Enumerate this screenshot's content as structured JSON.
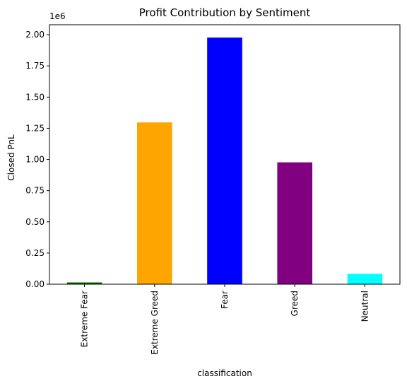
{
  "chart_data": {
    "type": "bar",
    "title": "Profit Contribution by Sentiment",
    "xlabel": "classification",
    "ylabel": "Closed PnL",
    "offset_label": "1e6",
    "categories": [
      "Extreme Fear",
      "Extreme Greed",
      "Fear",
      "Greed",
      "Neutral"
    ],
    "values": [
      14000,
      1297000,
      1977000,
      977000,
      83000
    ],
    "colors": [
      "#006400",
      "#ffa500",
      "#0000ff",
      "#800080",
      "#00ffff"
    ],
    "ylim": [
      0,
      2080000
    ],
    "yticks": [
      0,
      250000,
      500000,
      750000,
      1000000,
      1250000,
      1500000,
      1750000,
      2000000
    ],
    "ytick_labels": [
      "0.00",
      "0.25",
      "0.50",
      "0.75",
      "1.00",
      "1.25",
      "1.50",
      "1.75",
      "2.00"
    ],
    "grid": false,
    "legend": "none"
  }
}
